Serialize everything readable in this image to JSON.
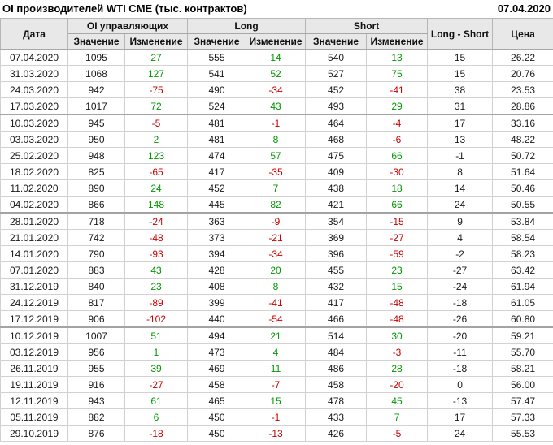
{
  "header": {
    "title": "OI производителей WTI CME (тыс. контрактов)",
    "date": "07.04.2020"
  },
  "table": {
    "header_groups": [
      {
        "label": "Дата"
      },
      {
        "label": "OI управляющих"
      },
      {
        "label": "Long"
      },
      {
        "label": "Short"
      },
      {
        "label": "Long - Short"
      },
      {
        "label": "Цена"
      }
    ],
    "subheaders": [
      "Значение",
      "Изменение",
      "Значение",
      "Изменение",
      "Значение",
      "Изменение"
    ],
    "colors": {
      "positive": "#009900",
      "negative": "#cc0000"
    },
    "group_break_after_rows": [
      4,
      10,
      17
    ],
    "rows": [
      {
        "date": "07.04.2020",
        "oi_value": 1095,
        "oi_change": 27,
        "long_value": 555,
        "long_change": 14,
        "short_value": 540,
        "short_change": 13,
        "long_short": 15,
        "price": "26.22"
      },
      {
        "date": "31.03.2020",
        "oi_value": 1068,
        "oi_change": 127,
        "long_value": 541,
        "long_change": 52,
        "short_value": 527,
        "short_change": 75,
        "long_short": 15,
        "price": "20.76"
      },
      {
        "date": "24.03.2020",
        "oi_value": 942,
        "oi_change": -75,
        "long_value": 490,
        "long_change": -34,
        "short_value": 452,
        "short_change": -41,
        "long_short": 38,
        "price": "23.53"
      },
      {
        "date": "17.03.2020",
        "oi_value": 1017,
        "oi_change": 72,
        "long_value": 524,
        "long_change": 43,
        "short_value": 493,
        "short_change": 29,
        "long_short": 31,
        "price": "28.86"
      },
      {
        "date": "10.03.2020",
        "oi_value": 945,
        "oi_change": -5,
        "long_value": 481,
        "long_change": -1,
        "short_value": 464,
        "short_change": -4,
        "long_short": 17,
        "price": "33.16"
      },
      {
        "date": "03.03.2020",
        "oi_value": 950,
        "oi_change": 2,
        "long_value": 481,
        "long_change": 8,
        "short_value": 468,
        "short_change": -6,
        "long_short": 13,
        "price": "48.22"
      },
      {
        "date": "25.02.2020",
        "oi_value": 948,
        "oi_change": 123,
        "long_value": 474,
        "long_change": 57,
        "short_value": 475,
        "short_change": 66,
        "long_short": -1,
        "price": "50.72"
      },
      {
        "date": "18.02.2020",
        "oi_value": 825,
        "oi_change": -65,
        "long_value": 417,
        "long_change": -35,
        "short_value": 409,
        "short_change": -30,
        "long_short": 8,
        "price": "51.64"
      },
      {
        "date": "11.02.2020",
        "oi_value": 890,
        "oi_change": 24,
        "long_value": 452,
        "long_change": 7,
        "short_value": 438,
        "short_change": 18,
        "long_short": 14,
        "price": "50.46"
      },
      {
        "date": "04.02.2020",
        "oi_value": 866,
        "oi_change": 148,
        "long_value": 445,
        "long_change": 82,
        "short_value": 421,
        "short_change": 66,
        "long_short": 24,
        "price": "50.55"
      },
      {
        "date": "28.01.2020",
        "oi_value": 718,
        "oi_change": -24,
        "long_value": 363,
        "long_change": -9,
        "short_value": 354,
        "short_change": -15,
        "long_short": 9,
        "price": "53.84"
      },
      {
        "date": "21.01.2020",
        "oi_value": 742,
        "oi_change": -48,
        "long_value": 373,
        "long_change": -21,
        "short_value": 369,
        "short_change": -27,
        "long_short": 4,
        "price": "58.54"
      },
      {
        "date": "14.01.2020",
        "oi_value": 790,
        "oi_change": -93,
        "long_value": 394,
        "long_change": -34,
        "short_value": 396,
        "short_change": -59,
        "long_short": -2,
        "price": "58.23"
      },
      {
        "date": "07.01.2020",
        "oi_value": 883,
        "oi_change": 43,
        "long_value": 428,
        "long_change": 20,
        "short_value": 455,
        "short_change": 23,
        "long_short": -27,
        "price": "63.42"
      },
      {
        "date": "31.12.2019",
        "oi_value": 840,
        "oi_change": 23,
        "long_value": 408,
        "long_change": 8,
        "short_value": 432,
        "short_change": 15,
        "long_short": -24,
        "price": "61.94"
      },
      {
        "date": "24.12.2019",
        "oi_value": 817,
        "oi_change": -89,
        "long_value": 399,
        "long_change": -41,
        "short_value": 417,
        "short_change": -48,
        "long_short": -18,
        "price": "61.05"
      },
      {
        "date": "17.12.2019",
        "oi_value": 906,
        "oi_change": -102,
        "long_value": 440,
        "long_change": -54,
        "short_value": 466,
        "short_change": -48,
        "long_short": -26,
        "price": "60.80"
      },
      {
        "date": "10.12.2019",
        "oi_value": 1007,
        "oi_change": 51,
        "long_value": 494,
        "long_change": 21,
        "short_value": 514,
        "short_change": 30,
        "long_short": -20,
        "price": "59.21"
      },
      {
        "date": "03.12.2019",
        "oi_value": 956,
        "oi_change": 1,
        "long_value": 473,
        "long_change": 4,
        "short_value": 484,
        "short_change": -3,
        "long_short": -11,
        "price": "55.70"
      },
      {
        "date": "26.11.2019",
        "oi_value": 955,
        "oi_change": 39,
        "long_value": 469,
        "long_change": 11,
        "short_value": 486,
        "short_change": 28,
        "long_short": -18,
        "price": "58.21"
      },
      {
        "date": "19.11.2019",
        "oi_value": 916,
        "oi_change": -27,
        "long_value": 458,
        "long_change": -7,
        "short_value": 458,
        "short_change": -20,
        "long_short": 0,
        "price": "56.00"
      },
      {
        "date": "12.11.2019",
        "oi_value": 943,
        "oi_change": 61,
        "long_value": 465,
        "long_change": 15,
        "short_value": 478,
        "short_change": 45,
        "long_short": -13,
        "price": "57.47"
      },
      {
        "date": "05.11.2019",
        "oi_value": 882,
        "oi_change": 6,
        "long_value": 450,
        "long_change": -1,
        "short_value": 433,
        "short_change": 7,
        "long_short": 17,
        "price": "57.33"
      },
      {
        "date": "29.10.2019",
        "oi_value": 876,
        "oi_change": -18,
        "long_value": 450,
        "long_change": -13,
        "short_value": 426,
        "short_change": -5,
        "long_short": 24,
        "price": "55.53"
      }
    ]
  }
}
